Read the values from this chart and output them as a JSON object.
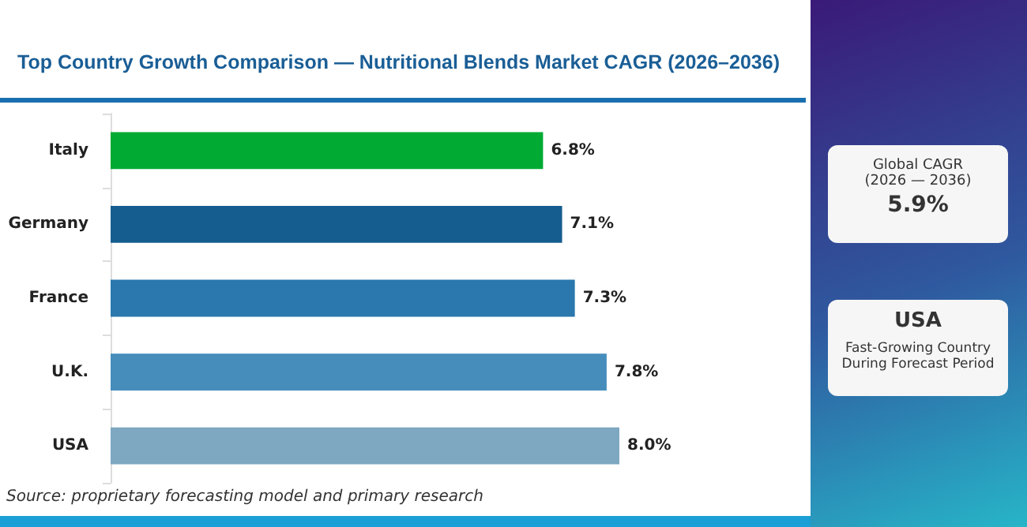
{
  "chart_data": {
    "type": "bar",
    "orientation": "horizontal",
    "title": "Top Country Growth Comparison — Nutritional Blends Market CAGR (2026–2036)",
    "categories": [
      "Italy",
      "Germany",
      "France",
      "U.K.",
      "USA"
    ],
    "values": [
      6.8,
      7.1,
      7.3,
      7.8,
      8.0
    ],
    "colors": [
      "#00aa33",
      "#155d8f",
      "#2a78ad",
      "#468dbb",
      "#7ea7c1"
    ],
    "value_labels": [
      "6.8%",
      "7.1%",
      "7.3%",
      "7.8%",
      "8.0%"
    ],
    "grid": false,
    "annotations": [
      "Source: proprietary forecasting model and primary research",
      "Global CAGR\n(2026 — 2036)",
      "5.9%",
      "USA",
      "Fast-Growing Country\nDuring Forecast Period"
    ]
  }
}
